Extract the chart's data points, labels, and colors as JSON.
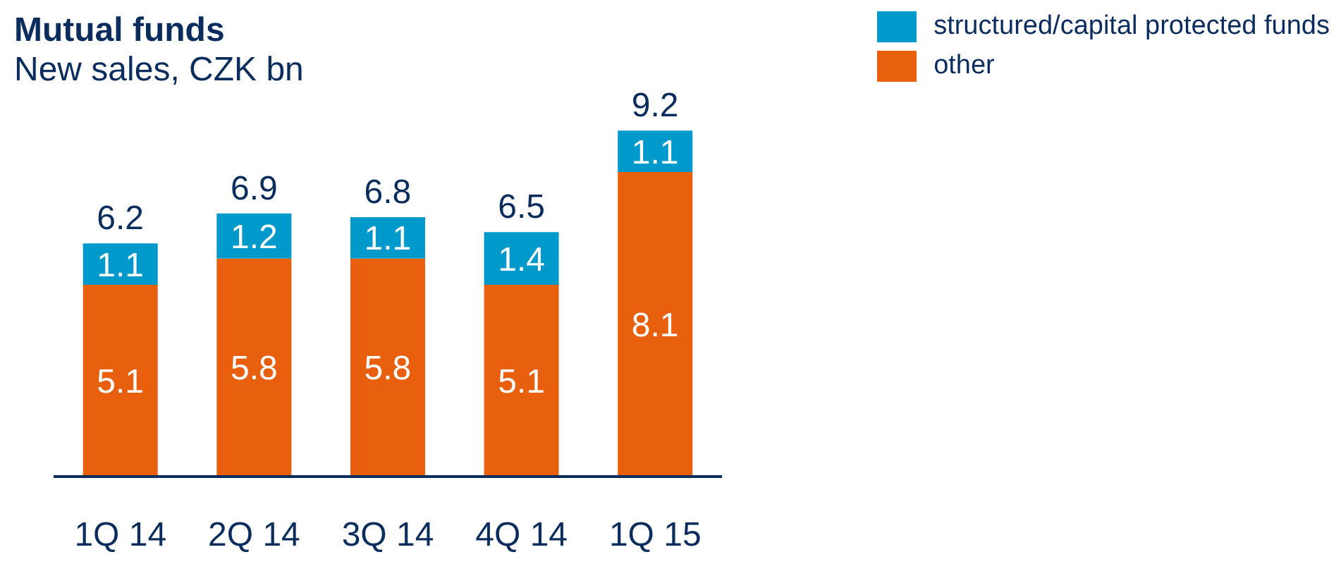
{
  "chart_data": {
    "type": "bar",
    "title": "Mutual funds",
    "subtitle": "New sales, CZK bn",
    "categories": [
      "1Q 14",
      "2Q 14",
      "3Q 14",
      "4Q 14",
      "1Q 15"
    ],
    "stacked": true,
    "data_labels": true,
    "legend": "top right",
    "grid": false,
    "series": [
      {
        "name": "other",
        "color": "#e8600e",
        "values": [
          5.1,
          5.8,
          5.8,
          5.1,
          8.1
        ]
      },
      {
        "name": "structured/capital protected funds",
        "color": "#0099cc",
        "values": [
          1.1,
          1.2,
          1.1,
          1.4,
          1.1
        ]
      }
    ],
    "totals": [
      "6.2",
      "6.9",
      "6.8",
      "6.5",
      "9.2"
    ]
  }
}
